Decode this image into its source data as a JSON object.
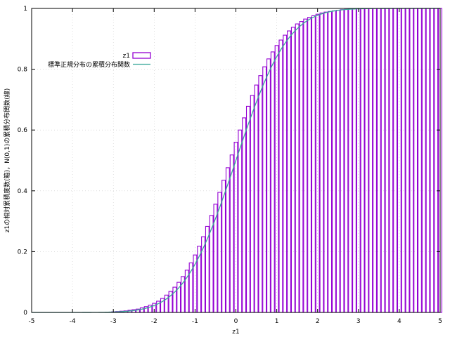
{
  "chart_data": {
    "type": "bar",
    "xlabel": "z1",
    "ylabel": "z1の相対累積度数(箱)，N(0,1)の累積分布関数(線)",
    "xlim": [
      -5,
      5
    ],
    "ylim": [
      0,
      1
    ],
    "xticks": [
      -5,
      -4,
      -3,
      -2,
      -1,
      0,
      1,
      2,
      3,
      4,
      5
    ],
    "yticks": [
      0,
      0.2,
      0.4,
      0.6,
      0.8,
      1
    ],
    "grid": true,
    "legend_position": "top-left",
    "bin_width": 0.1,
    "series": [
      {
        "name": "z1",
        "kind": "boxes",
        "color": "#9400d3",
        "x": [
          -3.0,
          -2.9,
          -2.8,
          -2.7,
          -2.6,
          -2.5,
          -2.4,
          -2.3,
          -2.2,
          -2.1,
          -2.0,
          -1.9,
          -1.8,
          -1.7,
          -1.6,
          -1.5,
          -1.4,
          -1.3,
          -1.2,
          -1.1,
          -1.0,
          -0.9,
          -0.8,
          -0.7,
          -0.6,
          -0.5,
          -0.4,
          -0.3,
          -0.2,
          -0.1,
          0.0,
          0.1,
          0.2,
          0.3,
          0.4,
          0.5,
          0.6,
          0.7,
          0.8,
          0.9,
          1.0,
          1.1,
          1.2,
          1.3,
          1.4,
          1.5,
          1.6,
          1.7,
          1.8,
          1.9,
          2.0,
          2.1,
          2.2,
          2.3,
          2.4,
          2.5,
          2.6,
          2.7,
          2.8,
          2.9,
          3.0,
          3.1,
          3.2,
          3.3,
          3.4,
          3.5,
          3.6,
          3.7,
          3.8,
          3.9,
          4.0,
          4.1,
          4.2,
          4.3,
          4.4,
          4.5,
          4.6,
          4.7,
          4.8,
          4.9,
          5.0
        ],
        "values": [
          0.002,
          0.003,
          0.004,
          0.005,
          0.007,
          0.009,
          0.011,
          0.015,
          0.019,
          0.024,
          0.03,
          0.037,
          0.046,
          0.057,
          0.069,
          0.083,
          0.099,
          0.118,
          0.139,
          0.163,
          0.189,
          0.218,
          0.249,
          0.283,
          0.319,
          0.356,
          0.395,
          0.435,
          0.476,
          0.518,
          0.56,
          0.6,
          0.64,
          0.678,
          0.714,
          0.748,
          0.779,
          0.808,
          0.834,
          0.857,
          0.878,
          0.896,
          0.912,
          0.926,
          0.938,
          0.949,
          0.957,
          0.965,
          0.971,
          0.976,
          0.981,
          0.985,
          0.988,
          0.99,
          0.992,
          0.994,
          0.996,
          0.997,
          0.998,
          0.999,
          0.999,
          1.0,
          1.0,
          1.0,
          1.0,
          1.0,
          1.0,
          1.0,
          1.0,
          1.0,
          1.0,
          1.0,
          1.0,
          1.0,
          1.0,
          1.0,
          1.0,
          1.0,
          1.0,
          1.0,
          1.0
        ]
      },
      {
        "name": "標準正規分布の累積分布関数",
        "kind": "line",
        "color": "#3aa89a",
        "function": "normal_cdf",
        "mean": 0,
        "sd": 1
      }
    ]
  }
}
